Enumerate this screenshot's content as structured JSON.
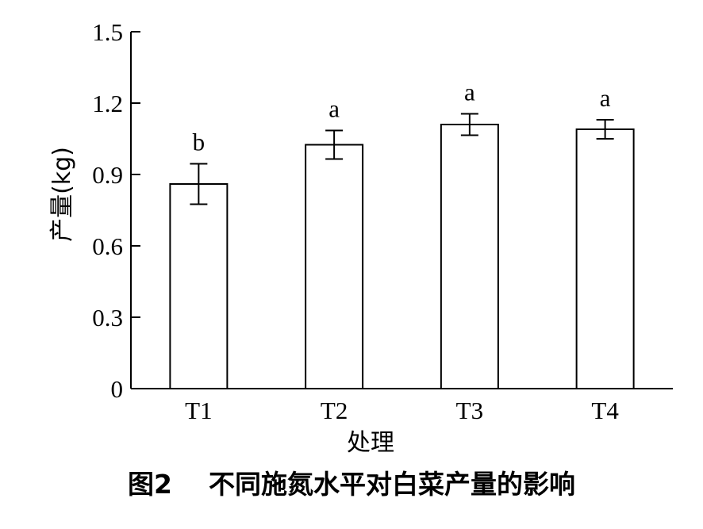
{
  "caption": "图2    不同施氮水平对白菜产量的影响",
  "chart_data": {
    "type": "bar",
    "title": "",
    "xlabel": "处理",
    "ylabel": "产量(kg)",
    "categories": [
      "T1",
      "T2",
      "T3",
      "T4"
    ],
    "values": [
      0.86,
      1.025,
      1.11,
      1.09
    ],
    "errors": [
      0.085,
      0.06,
      0.045,
      0.04
    ],
    "significance_labels": [
      "b",
      "a",
      "a",
      "a"
    ],
    "ylim": [
      0,
      1.5
    ],
    "yticks": [
      0,
      0.3,
      0.6,
      0.9,
      1.2,
      1.5
    ],
    "ytick_labels": [
      "0",
      "0.3",
      "0.6",
      "0.9",
      "1.2",
      "1.5"
    ],
    "bar_fill": "#ffffff",
    "bar_stroke": "#000000",
    "grid": false,
    "legend": "none"
  }
}
